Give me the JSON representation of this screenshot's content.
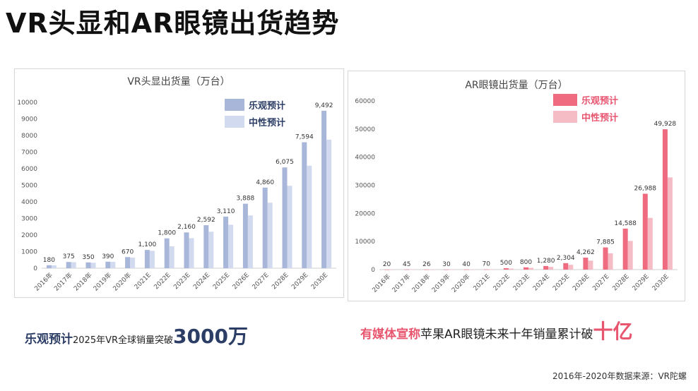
{
  "page_title": "VR头显和AR眼镜出货趋势",
  "chart_data": [
    {
      "type": "bar",
      "title": "VR头显出货量（万台）",
      "categories": [
        "2016年",
        "2017年",
        "2018年",
        "2019年",
        "2020年",
        "2021E",
        "2022E",
        "2023E",
        "2024E",
        "2025E",
        "2026E",
        "2027E",
        "2028E",
        "2029E",
        "2030E"
      ],
      "series": [
        {
          "name": "乐观预计",
          "values": [
            180,
            375,
            350,
            390,
            670,
            1100,
            1800,
            2160,
            2592,
            3110,
            3888,
            4860,
            6075,
            7594,
            9492
          ]
        },
        {
          "name": "中性预计",
          "values": [
            170,
            360,
            330,
            380,
            640,
            1050,
            1320,
            1810,
            2200,
            2620,
            3180,
            3950,
            4970,
            6180,
            7750
          ]
        }
      ],
      "value_labels": [
        "180",
        "375",
        "350",
        "390",
        "670",
        "1,100",
        "1,800",
        "2,160",
        "2,592",
        "3,110",
        "3,888",
        "4,860",
        "6,075",
        "7,594",
        "9,492"
      ],
      "ylim": [
        0,
        10000
      ],
      "yticks": [
        "0",
        "1000",
        "2000",
        "3000",
        "4000",
        "5000",
        "6000",
        "7000",
        "8000",
        "9000",
        "10000"
      ],
      "legend_position": "top-right",
      "grid": false,
      "colors": {
        "optimistic": "#a8b6da",
        "neutral": "#d2daf0",
        "legend_text": "#2c3e66"
      }
    },
    {
      "type": "bar",
      "title": "AR眼镜出货量（万台）",
      "categories": [
        "2016年",
        "2017年",
        "2018年",
        "2019年",
        "2020年",
        "2021E",
        "2022E",
        "2023E",
        "2024E",
        "2025E",
        "2026E",
        "2027E",
        "2028E",
        "2029E",
        "2030E"
      ],
      "series": [
        {
          "name": "乐观预计",
          "values": [
            20,
            45,
            26,
            30,
            40,
            70,
            500,
            800,
            1280,
            2304,
            4262,
            7885,
            14588,
            26988,
            49928
          ]
        },
        {
          "name": "中性预计",
          "values": [
            15,
            35,
            20,
            25,
            30,
            55,
            380,
            620,
            960,
            1720,
            3200,
            5800,
            10200,
            18400,
            32800
          ]
        }
      ],
      "value_labels": [
        "20",
        "45",
        "26",
        "30",
        "40",
        "70",
        "500",
        "800",
        "1,280",
        "2,304",
        "4,262",
        "7,885",
        "14,588",
        "26,988",
        "49,928"
      ],
      "ylim": [
        0,
        60000
      ],
      "yticks": [
        "0",
        "10000",
        "20000",
        "30000",
        "40000",
        "50000",
        "60000"
      ],
      "legend_position": "top-right",
      "grid": false,
      "colors": {
        "optimistic": "#ee6b80",
        "neutral": "#f6bcc6",
        "legend_text": "#e8556f"
      }
    }
  ],
  "captions": {
    "vr": {
      "emphasis": "乐观预计",
      "middle": "2025年VR全球销量突破",
      "big": "3000万"
    },
    "ar": {
      "emphasis": "有媒体宣称",
      "middle": "苹果AR眼镜未来十年销量累计破",
      "big": "十亿"
    }
  },
  "source_note": "2016年-2020年数据来源：VR陀螺"
}
